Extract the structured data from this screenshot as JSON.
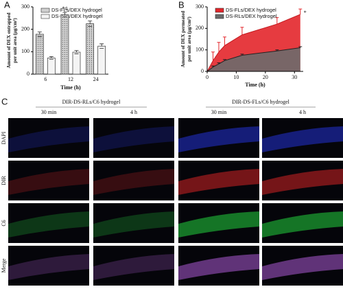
{
  "chart_data": [
    {
      "type": "bar",
      "panel": "A",
      "categories": [
        "6",
        "12",
        "24"
      ],
      "series": [
        {
          "name": "DS-FLs/DEX hydrogel",
          "color": "#cfcfcf",
          "values": [
            178,
            265,
            225
          ],
          "errors": [
            10,
            10,
            12
          ]
        },
        {
          "name": "DS-RLs/DEX hydrogel",
          "color": "#f4f4f4",
          "values": [
            72,
            98,
            125
          ],
          "errors": [
            6,
            7,
            10
          ]
        }
      ],
      "annotation": "*#",
      "ylabel": [
        "Amount of DEX entrapped",
        "per unit area (μg/cm²)"
      ],
      "xlabel": "Time (h)",
      "ylim": [
        0,
        300
      ],
      "yticks": [
        0,
        100,
        200,
        300
      ],
      "legend": "top"
    },
    {
      "type": "area",
      "panel": "B",
      "x": [
        0,
        2,
        4,
        6,
        12,
        24,
        32
      ],
      "series": [
        {
          "name": "DS-FLs/DEX hydrogel",
          "color": "#e3262b",
          "values": [
            0,
            50,
            90,
            120,
            170,
            220,
            265
          ],
          "errors": [
            0,
            40,
            45,
            40,
            35,
            30,
            25
          ]
        },
        {
          "name": "DS-RLs/DEX hydrogel",
          "color": "#6b6b6b",
          "values": [
            0,
            20,
            35,
            50,
            75,
            95,
            110
          ],
          "errors": [
            0,
            5,
            5,
            5,
            5,
            5,
            5
          ]
        }
      ],
      "annotation": "*",
      "ylabel": [
        "Amount of DEX permeated",
        "per unit area (μg/cm²)"
      ],
      "xlabel": "Time (h)",
      "xlim": [
        0,
        33
      ],
      "xticks": [
        0,
        10,
        20,
        30
      ],
      "ylim": [
        0,
        300
      ],
      "yticks": [
        0,
        100,
        200,
        300
      ],
      "legend": "top"
    }
  ],
  "micrographs": {
    "panel": "C",
    "groups": [
      "DIR-DS-RLs/C6 hydrogel",
      "DIR-DS-FLs/C6 hydrogel"
    ],
    "columns": [
      "30 min",
      "4 h",
      "30 min",
      "4 h"
    ],
    "rows": [
      "DAPI",
      "DIR",
      "C6",
      "Merge"
    ]
  }
}
